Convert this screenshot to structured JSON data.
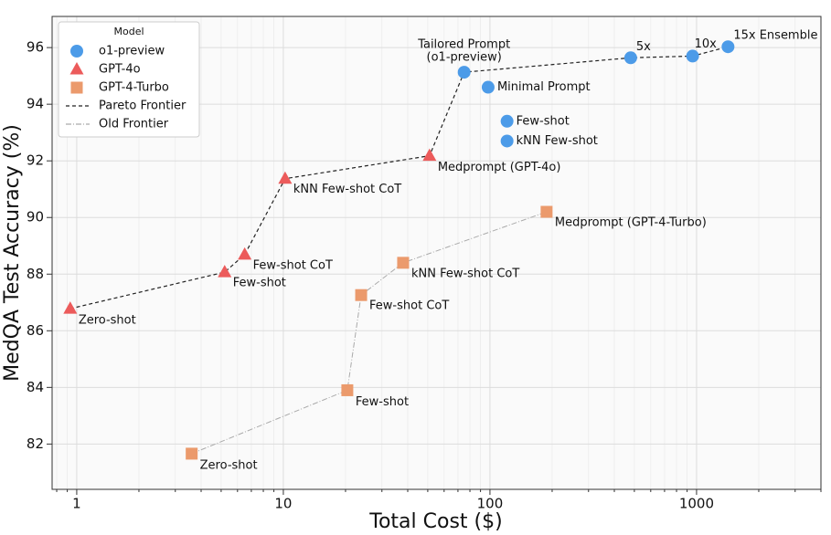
{
  "chart_data": {
    "type": "scatter",
    "xlabel": "Total Cost ($)",
    "ylabel": "MedQA Test Accuracy (%)",
    "xscale": "log",
    "grid": true,
    "legend": "upper left",
    "legend_title": "Model",
    "xlim": [
      0.76,
      4000
    ],
    "ylim": [
      80.4,
      97.1
    ],
    "xticks": [
      1,
      10,
      100,
      1000
    ],
    "yticks": [
      82,
      84,
      86,
      88,
      90,
      92,
      94,
      96
    ],
    "series": [
      {
        "name": "o1-preview",
        "color": "#4c9be8",
        "marker": "circle",
        "x": [
          75,
          98,
          121,
          121,
          480,
          957,
          1420
        ],
        "values": [
          95.13,
          94.6,
          93.4,
          92.7,
          95.64,
          95.7,
          96.03
        ],
        "labels": [
          [
            "Tailored Prompt",
            "(o1-preview)"
          ],
          "Minimal Prompt",
          "Few-shot",
          "kNN Few-shot",
          "5x",
          "10x",
          "15x Ensemble"
        ]
      },
      {
        "name": "GPT-4o",
        "color": "#ec5b5b",
        "marker": "triangle",
        "x": [
          0.93,
          5.2,
          6.5,
          10.2,
          51
        ],
        "values": [
          86.78,
          88.07,
          88.69,
          91.37,
          92.18
        ],
        "labels": [
          "Zero-shot",
          "Few-shot",
          "Few-shot CoT",
          "kNN Few-shot CoT",
          "Medprompt (GPT-4o)"
        ]
      },
      {
        "name": "GPT-4-Turbo",
        "color": "#eb9a6c",
        "marker": "square",
        "x": [
          3.6,
          20.4,
          23.8,
          38,
          188
        ],
        "values": [
          81.66,
          83.9,
          87.26,
          88.4,
          90.2
        ],
        "labels": [
          "Zero-shot",
          "Few-shot",
          "Few-shot CoT",
          "kNN Few-shot CoT",
          "Medprompt (GPT-4-Turbo)"
        ]
      }
    ],
    "lines": [
      {
        "name": "Pareto Frontier",
        "color": "#222222",
        "style": "dashed",
        "x": [
          0.93,
          5.2,
          6.5,
          10.2,
          51,
          75,
          480,
          957,
          1420
        ],
        "values": [
          86.78,
          88.07,
          88.69,
          91.37,
          92.18,
          95.13,
          95.64,
          95.7,
          96.03
        ]
      },
      {
        "name": "Old Frontier",
        "color": "#aaaaaa",
        "style": "dashdot",
        "x": [
          3.6,
          20.4,
          23.8,
          38,
          188
        ],
        "values": [
          81.66,
          83.9,
          87.26,
          88.4,
          90.2
        ]
      }
    ]
  }
}
